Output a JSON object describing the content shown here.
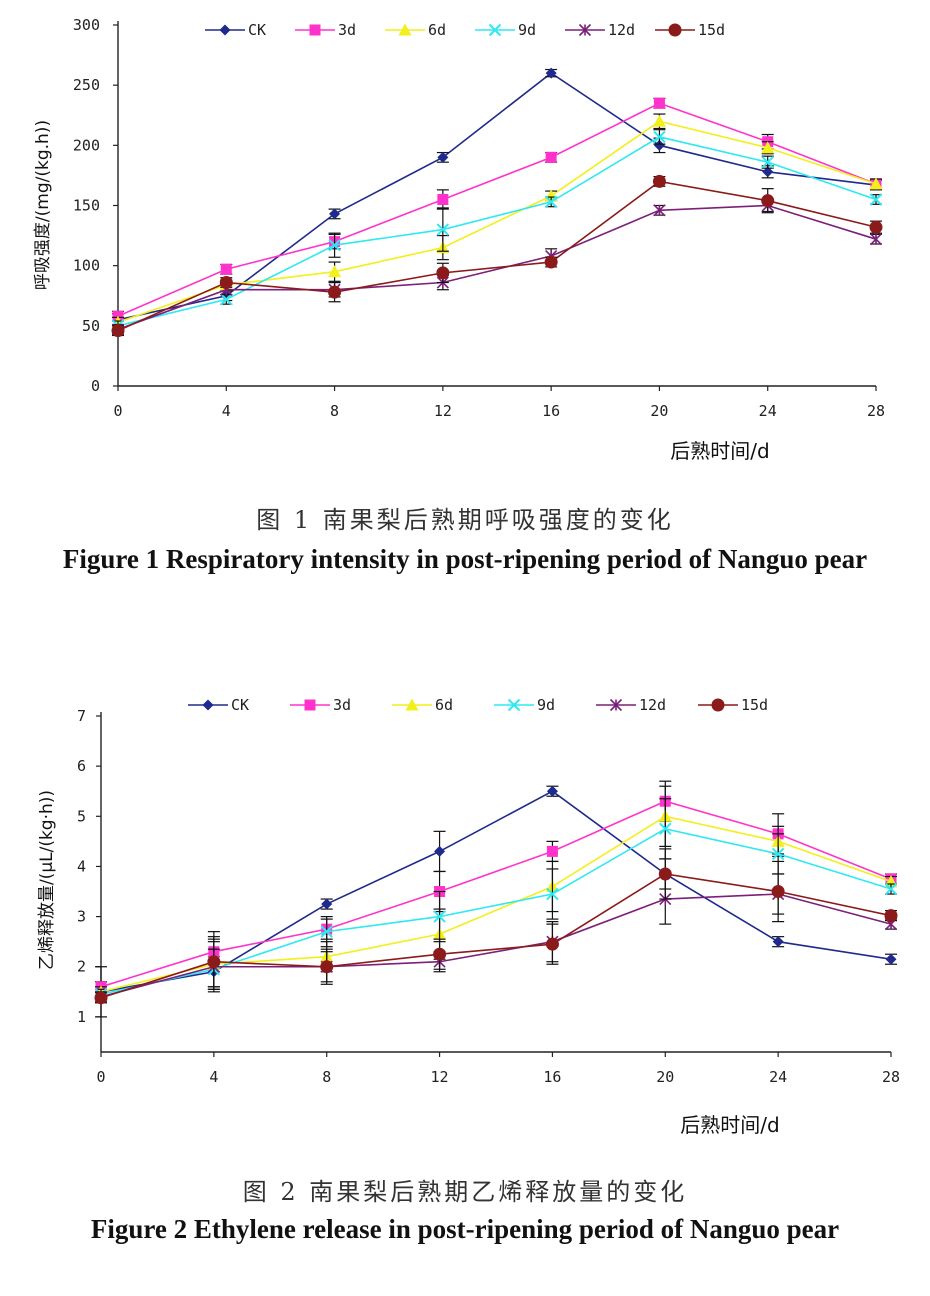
{
  "figures": [
    {
      "caption_cn": "图 1 南果梨后熟期呼吸强度的变化",
      "caption_en": "Figure 1 Respiratory intensity in post-ripening period of Nanguo pear"
    },
    {
      "caption_cn": "图 2 南果梨后熟期乙烯释放量的变化",
      "caption_en": "Figure 2 Ethylene release in post-ripening period of Nanguo pear"
    }
  ],
  "chart_data": [
    {
      "type": "line",
      "title": "",
      "xlabel": "后熟时间/d",
      "ylabel": "呼吸强度/(mg/(kg.h))",
      "x": [
        0,
        4,
        8,
        12,
        16,
        20,
        24,
        28
      ],
      "ylim": [
        0,
        300
      ],
      "yticks": [
        0,
        50,
        100,
        150,
        200,
        250,
        300
      ],
      "grid": false,
      "legend_position": "top",
      "series": [
        {
          "name": "CK",
          "color": "#1f2a8c",
          "marker": "diamond",
          "values": [
            55,
            75,
            143,
            190,
            260,
            200,
            178,
            167
          ],
          "errors": [
            5,
            4,
            4,
            4,
            3,
            6,
            5,
            4
          ]
        },
        {
          "name": "3d",
          "color": "#ff33cc",
          "marker": "square",
          "values": [
            58,
            97,
            120,
            155,
            190,
            235,
            203,
            168
          ],
          "errors": [
            4,
            4,
            6,
            8,
            4,
            4,
            6,
            4
          ]
        },
        {
          "name": "6d",
          "color": "#f2ef1a",
          "marker": "triangle",
          "values": [
            53,
            84,
            95,
            115,
            158,
            220,
            198,
            168
          ],
          "errors": [
            4,
            4,
            8,
            10,
            4,
            6,
            5,
            4
          ]
        },
        {
          "name": "9d",
          "color": "#2ee8f2",
          "marker": "x",
          "values": [
            50,
            72,
            117,
            130,
            153,
            207,
            186,
            155
          ],
          "errors": [
            4,
            4,
            10,
            18,
            4,
            6,
            5,
            4
          ]
        },
        {
          "name": "12d",
          "color": "#7b1f7a",
          "marker": "star",
          "values": [
            47,
            80,
            80,
            86,
            108,
            146,
            150,
            122
          ],
          "errors": [
            4,
            4,
            6,
            6,
            6,
            4,
            5,
            4
          ]
        },
        {
          "name": "15d",
          "color": "#8b1a1a",
          "marker": "circle",
          "values": [
            46,
            86,
            78,
            94,
            103,
            170,
            154,
            132
          ],
          "errors": [
            4,
            4,
            8,
            8,
            4,
            4,
            10,
            5
          ]
        }
      ]
    },
    {
      "type": "line",
      "title": "",
      "xlabel": "后熟时间/d",
      "ylabel": "乙烯释放量/(μL/(kg·h))",
      "x": [
        0,
        4,
        8,
        12,
        16,
        20,
        24,
        28
      ],
      "ylim": [
        0.3,
        7
      ],
      "yticks": [
        1,
        2,
        3,
        4,
        5,
        6,
        7
      ],
      "grid": false,
      "legend_position": "top",
      "series": [
        {
          "name": "CK",
          "color": "#1f2a8c",
          "marker": "diamond",
          "values": [
            1.5,
            1.9,
            3.25,
            4.3,
            5.5,
            3.85,
            2.5,
            2.15
          ],
          "errors": [
            0.5,
            0.3,
            0.1,
            0.4,
            0.1,
            0.3,
            0.1,
            0.1
          ]
        },
        {
          "name": "3d",
          "color": "#ff33cc",
          "marker": "square",
          "values": [
            1.6,
            2.3,
            2.75,
            3.5,
            4.3,
            5.3,
            4.65,
            3.75
          ],
          "errors": [
            0.1,
            0.4,
            0.2,
            0.4,
            0.2,
            0.4,
            0.4,
            0.1
          ]
        },
        {
          "name": "6d",
          "color": "#f2ef1a",
          "marker": "triangle",
          "values": [
            1.5,
            2.05,
            2.2,
            2.65,
            3.6,
            5.0,
            4.5,
            3.7
          ],
          "errors": [
            0.1,
            0.5,
            0.3,
            0.5,
            0.5,
            0.6,
            0.3,
            0.1
          ]
        },
        {
          "name": "9d",
          "color": "#2ee8f2",
          "marker": "x",
          "values": [
            1.45,
            1.95,
            2.7,
            3.0,
            3.45,
            4.75,
            4.25,
            3.55
          ],
          "errors": [
            0.1,
            0.4,
            0.3,
            0.5,
            0.5,
            0.6,
            0.4,
            0.1
          ]
        },
        {
          "name": "12d",
          "color": "#7b1f7a",
          "marker": "star",
          "values": [
            1.4,
            2.0,
            2.0,
            2.1,
            2.5,
            3.35,
            3.45,
            2.85
          ],
          "errors": [
            0.1,
            0.5,
            0.3,
            0.2,
            0.4,
            0.5,
            0.4,
            0.1
          ]
        },
        {
          "name": "15d",
          "color": "#8b1a1a",
          "marker": "circle",
          "values": [
            1.38,
            2.1,
            2.0,
            2.25,
            2.45,
            3.85,
            3.5,
            3.02
          ],
          "errors": [
            0.1,
            0.5,
            0.35,
            0.3,
            0.4,
            0.5,
            0.6,
            0.1
          ]
        }
      ]
    }
  ]
}
